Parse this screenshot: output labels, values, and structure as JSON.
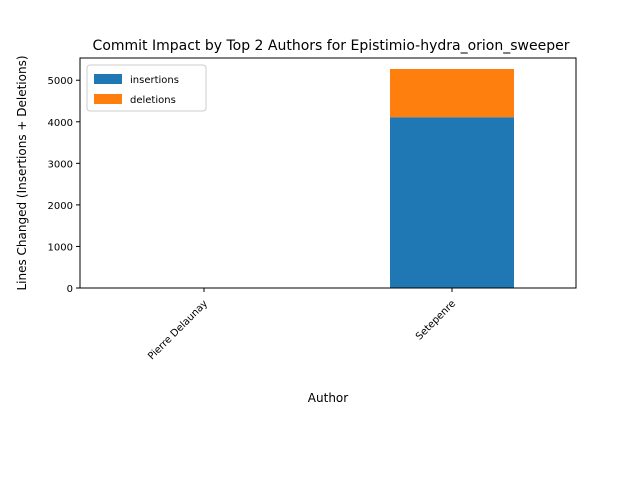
{
  "chart_data": {
    "type": "bar",
    "stacked": true,
    "title": "Commit Impact by Top 2 Authors for Epistimio-hydra_orion_sweeper",
    "xlabel": "Author",
    "ylabel": "Lines Changed (Insertions + Deletions)",
    "categories": [
      "Pierre Delaunay",
      "Setepenre"
    ],
    "series": [
      {
        "name": "insertions",
        "values": [
          0,
          4110
        ],
        "color": "#1f77b4"
      },
      {
        "name": "deletions",
        "values": [
          0,
          1160
        ],
        "color": "#ff7f0e"
      }
    ],
    "ylim": [
      0,
      5535
    ],
    "yticks": [
      0,
      1000,
      2000,
      3000,
      4000,
      5000
    ],
    "legend": "top-left",
    "grid": false
  }
}
